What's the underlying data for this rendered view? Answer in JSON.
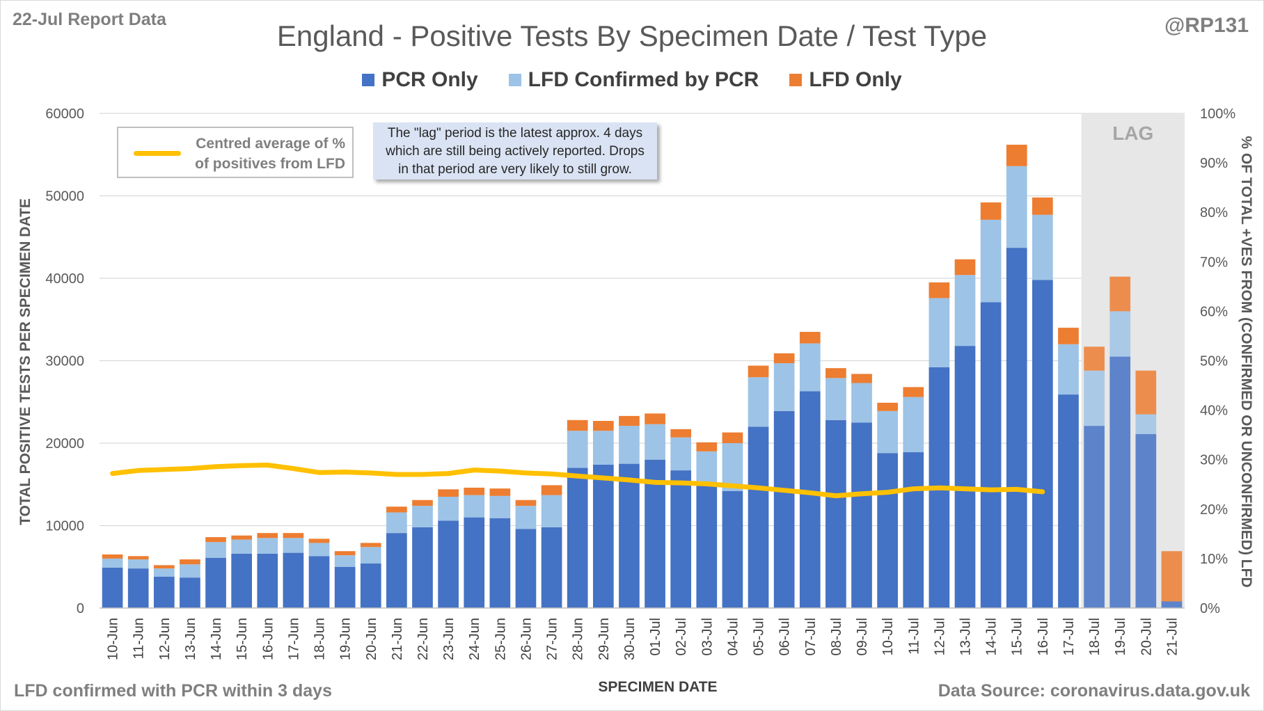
{
  "header": {
    "report_label": "22-Jul Report Data",
    "author": "@RP131"
  },
  "footer": {
    "footnote": "LFD confirmed with PCR within 3 days",
    "source": "Data Source: coronavirus.data.gov.uk"
  },
  "annotations": {
    "lag_note_lines": [
      "The \"lag\" period is the latest approx. 4 days",
      "which are still being actively reported.  Drops",
      "in that period are very likely to still grow."
    ],
    "lag_label": "LAG",
    "line_legend_lines": [
      "Centred average of %",
      "of positives from LFD"
    ]
  },
  "colors": {
    "pcr_only": "#4472c4",
    "lfd_confirmed": "#9dc3e6",
    "lfd_only": "#ed7d31",
    "line": "#ffc000",
    "lag_shade": "#e7e7e7"
  },
  "chart_data": {
    "type": "bar",
    "stacked": true,
    "title": "England - Positive Tests By Specimen Date / Test Type",
    "xlabel": "SPECIMEN DATE",
    "ylabel": "TOTAL POSITIVE TESTS PER SPECIMEN DATE",
    "y2label": "% OF TOTAL +VES FROM (CONFIRMED OR UNCONFIRMED) LFD",
    "ylim": [
      0,
      60000
    ],
    "yticks": [
      0,
      10000,
      20000,
      30000,
      40000,
      50000,
      60000
    ],
    "y2lim": [
      0,
      100
    ],
    "y2ticks": [
      "0%",
      "10%",
      "20%",
      "30%",
      "40%",
      "50%",
      "60%",
      "70%",
      "80%",
      "90%",
      "100%"
    ],
    "legend_position": "top",
    "lag_categories": [
      "18-Jul",
      "19-Jul",
      "20-Jul",
      "21-Jul"
    ],
    "categories": [
      "10-Jun",
      "11-Jun",
      "12-Jun",
      "13-Jun",
      "14-Jun",
      "15-Jun",
      "16-Jun",
      "17-Jun",
      "18-Jun",
      "19-Jun",
      "20-Jun",
      "21-Jun",
      "22-Jun",
      "23-Jun",
      "24-Jun",
      "25-Jun",
      "26-Jun",
      "27-Jun",
      "28-Jun",
      "29-Jun",
      "30-Jun",
      "01-Jul",
      "02-Jul",
      "03-Jul",
      "04-Jul",
      "05-Jul",
      "06-Jul",
      "07-Jul",
      "08-Jul",
      "09-Jul",
      "10-Jul",
      "11-Jul",
      "12-Jul",
      "13-Jul",
      "14-Jul",
      "15-Jul",
      "16-Jul",
      "17-Jul",
      "18-Jul",
      "19-Jul",
      "20-Jul",
      "21-Jul"
    ],
    "series": [
      {
        "name": "PCR Only",
        "values": [
          4900,
          4800,
          3800,
          3700,
          6100,
          6600,
          6600,
          6700,
          6300,
          5000,
          5400,
          9100,
          9800,
          10600,
          11000,
          10900,
          9600,
          9800,
          17000,
          17400,
          17500,
          18000,
          16700,
          15200,
          14200,
          22000,
          23900,
          26300,
          22800,
          22500,
          18800,
          18900,
          29200,
          31800,
          37100,
          43700,
          39800,
          25900,
          22100,
          30500,
          21100,
          800
        ]
      },
      {
        "name": "LFD Confirmed by PCR",
        "values": [
          1100,
          1100,
          1000,
          1600,
          1900,
          1700,
          1900,
          1800,
          1600,
          1400,
          2000,
          2500,
          2600,
          2900,
          2700,
          2700,
          2800,
          3900,
          4500,
          4100,
          4600,
          4300,
          4000,
          3800,
          5800,
          6000,
          5800,
          5800,
          5100,
          4800,
          5100,
          6700,
          8400,
          8600,
          10000,
          9900,
          7900,
          6100,
          6700,
          5500,
          2400,
          0
        ]
      },
      {
        "name": "LFD Only",
        "values": [
          500,
          400,
          400,
          600,
          600,
          500,
          600,
          600,
          500,
          500,
          500,
          700,
          700,
          900,
          900,
          900,
          700,
          1200,
          1300,
          1200,
          1200,
          1300,
          1000,
          1100,
          1300,
          1400,
          1200,
          1400,
          1200,
          1100,
          1000,
          1200,
          1900,
          1900,
          2100,
          2600,
          2100,
          2000,
          2900,
          4200,
          5300,
          6100
        ]
      }
    ],
    "line_series": {
      "name": "Centred average of % of positives from LFD",
      "axis": "secondary",
      "values": [
        27.2,
        27.8,
        28.0,
        28.2,
        28.6,
        28.8,
        28.9,
        28.2,
        27.4,
        27.5,
        27.3,
        27.0,
        27.0,
        27.2,
        27.9,
        27.7,
        27.3,
        27.1,
        26.7,
        26.3,
        25.9,
        25.4,
        25.3,
        25.1,
        24.7,
        24.3,
        23.8,
        23.3,
        22.7,
        23.1,
        23.4,
        24.1,
        24.3,
        24.1,
        23.9,
        24.0,
        23.5
      ]
    }
  }
}
